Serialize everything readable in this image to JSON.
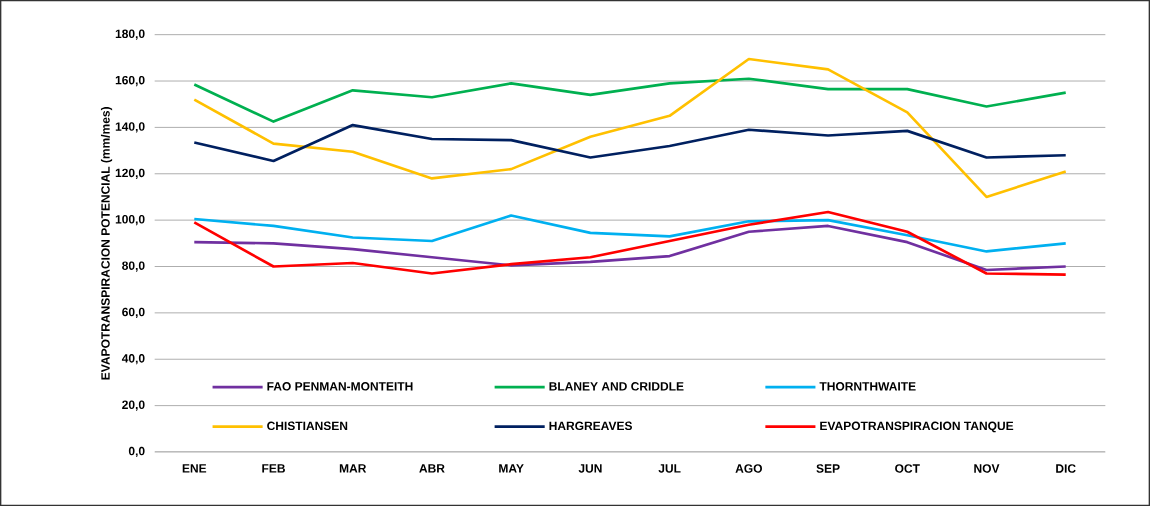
{
  "chart_data": {
    "type": "line",
    "ylabel": "EVAPOTRANSPIRACION POTENCIAL (mm/mes)",
    "categories": [
      "ENE",
      "FEB",
      "MAR",
      "ABR",
      "MAY",
      "JUN",
      "JUL",
      "AGO",
      "SEP",
      "OCT",
      "NOV",
      "DIC"
    ],
    "series": [
      {
        "name": "FAO PENMAN-MONTEITH",
        "color": "#7030a0",
        "values": [
          90.5,
          90,
          87.5,
          84,
          80.5,
          82,
          84.5,
          95,
          97.5,
          90.5,
          78.5,
          80
        ]
      },
      {
        "name": "BLANEY AND CRIDDLE",
        "color": "#00b050",
        "values": [
          158.5,
          142.5,
          156,
          153,
          159,
          154,
          159,
          161,
          156.5,
          156.5,
          149,
          155
        ]
      },
      {
        "name": "THORNTHWAITE",
        "color": "#00b0f0",
        "values": [
          100.5,
          97.5,
          92.5,
          91,
          102,
          94.5,
          93,
          99.5,
          100,
          93.5,
          86.5,
          90
        ]
      },
      {
        "name": "CHISTIANSEN",
        "color": "#ffc000",
        "values": [
          152,
          133,
          129.5,
          118,
          122,
          136,
          145,
          169.5,
          165,
          146.5,
          110,
          121
        ]
      },
      {
        "name": "HARGREAVES",
        "color": "#002060",
        "values": [
          133.5,
          125.5,
          141,
          135,
          134.5,
          127,
          132,
          139,
          136.5,
          138.5,
          127,
          128
        ]
      },
      {
        "name": "EVAPOTRANSPIRACION TANQUE",
        "color": "#ff0000",
        "values": [
          99,
          80,
          81.5,
          77,
          81,
          84,
          91,
          98,
          103.5,
          95,
          77,
          76.5
        ]
      }
    ],
    "ylim": [
      0,
      180
    ],
    "yticks": [
      {
        "value": 0,
        "label": "0,0"
      },
      {
        "value": 20,
        "label": "20,0"
      },
      {
        "value": 40,
        "label": "40,0"
      },
      {
        "value": 60,
        "label": "60,0"
      },
      {
        "value": 80,
        "label": "80,0"
      },
      {
        "value": 100,
        "label": "100,0"
      },
      {
        "value": 120,
        "label": "120,0"
      },
      {
        "value": 140,
        "label": "140,0"
      },
      {
        "value": 160,
        "label": "160,0"
      },
      {
        "value": 180,
        "label": "180,0"
      }
    ],
    "grid": "y",
    "legend": "bottom"
  }
}
